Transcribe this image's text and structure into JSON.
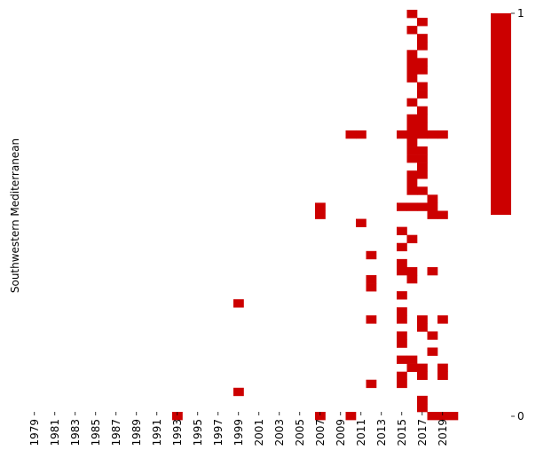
{
  "chart_data": {
    "type": "heatmap",
    "ylabel": "Southwestern Mediterranean",
    "x_tick_labels": [
      "1979",
      "1981",
      "1983",
      "1985",
      "1987",
      "1989",
      "1991",
      "1993",
      "1995",
      "1997",
      "1999",
      "2001",
      "2003",
      "2005",
      "2007",
      "2009",
      "2011",
      "2013",
      "2015",
      "2017",
      "2019"
    ],
    "x_range": [
      1979,
      2021
    ],
    "row_count": 50,
    "color": "#cc0000",
    "background": "#ffffff",
    "grid": false,
    "colorbar": {
      "ticks": [
        "1",
        "0"
      ],
      "range": [
        0,
        1
      ],
      "position": "right"
    },
    "cells": [
      [
        2016,
        1
      ],
      [
        2017,
        2
      ],
      [
        2016,
        3
      ],
      [
        2017,
        4
      ],
      [
        2017,
        5
      ],
      [
        2016,
        6
      ],
      [
        2016,
        7
      ],
      [
        2017,
        7
      ],
      [
        2016,
        8
      ],
      [
        2017,
        8
      ],
      [
        2016,
        9
      ],
      [
        2017,
        10
      ],
      [
        2017,
        11
      ],
      [
        2016,
        12
      ],
      [
        2017,
        13
      ],
      [
        2016,
        14
      ],
      [
        2017,
        14
      ],
      [
        2016,
        15
      ],
      [
        2017,
        15
      ],
      [
        2010,
        16
      ],
      [
        2011,
        16
      ],
      [
        2015,
        16
      ],
      [
        2016,
        16
      ],
      [
        2017,
        16
      ],
      [
        2018,
        16
      ],
      [
        2019,
        16
      ],
      [
        2016,
        17
      ],
      [
        2016,
        18
      ],
      [
        2017,
        18
      ],
      [
        2016,
        19
      ],
      [
        2017,
        19
      ],
      [
        2017,
        20
      ],
      [
        2016,
        21
      ],
      [
        2017,
        21
      ],
      [
        2016,
        22
      ],
      [
        2016,
        23
      ],
      [
        2017,
        23
      ],
      [
        2018,
        24
      ],
      [
        2007,
        25
      ],
      [
        2015,
        25
      ],
      [
        2016,
        25
      ],
      [
        2017,
        25
      ],
      [
        2018,
        25
      ],
      [
        2007,
        26
      ],
      [
        2018,
        26
      ],
      [
        2019,
        26
      ],
      [
        2011,
        27
      ],
      [
        2015,
        28
      ],
      [
        2016,
        29
      ],
      [
        2015,
        30
      ],
      [
        2012,
        31
      ],
      [
        2015,
        32
      ],
      [
        2015,
        33
      ],
      [
        2016,
        33
      ],
      [
        2018,
        33
      ],
      [
        2012,
        34
      ],
      [
        2016,
        34
      ],
      [
        2012,
        35
      ],
      [
        2015,
        36
      ],
      [
        1999,
        37
      ],
      [
        2015,
        38
      ],
      [
        2012,
        39
      ],
      [
        2015,
        39
      ],
      [
        2017,
        39
      ],
      [
        2019,
        39
      ],
      [
        2017,
        40
      ],
      [
        2015,
        41
      ],
      [
        2018,
        41
      ],
      [
        2015,
        42
      ],
      [
        2018,
        43
      ],
      [
        2015,
        44
      ],
      [
        2016,
        44
      ],
      [
        2016,
        45
      ],
      [
        2017,
        45
      ],
      [
        2019,
        45
      ],
      [
        2015,
        46
      ],
      [
        2017,
        46
      ],
      [
        2019,
        46
      ],
      [
        2012,
        47
      ],
      [
        2015,
        47
      ],
      [
        1999,
        48
      ],
      [
        2017,
        49
      ],
      [
        2017,
        50
      ],
      [
        1993,
        51
      ],
      [
        2007,
        51
      ],
      [
        2010,
        51
      ],
      [
        2018,
        51
      ],
      [
        2019,
        51
      ],
      [
        2020,
        51
      ]
    ]
  }
}
